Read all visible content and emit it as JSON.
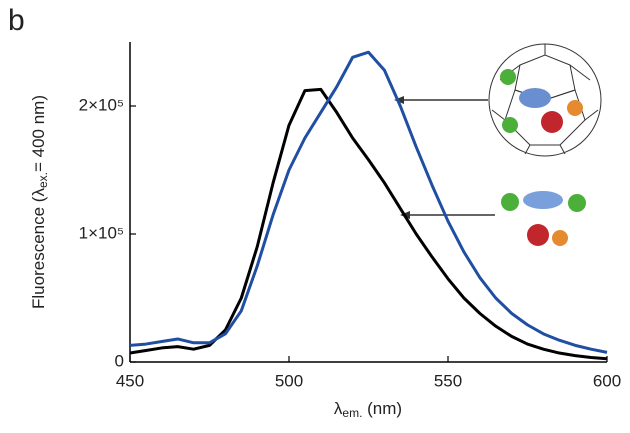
{
  "chart_data": {
    "type": "line",
    "panel_label": "b",
    "xlabel": [
      "λ",
      "em.",
      " (nm)"
    ],
    "ylabel": [
      "Fluorescence (λ",
      "ex.",
      "= 400 nm)"
    ],
    "x": [
      450,
      455,
      460,
      465,
      470,
      475,
      480,
      485,
      490,
      495,
      500,
      505,
      510,
      515,
      520,
      525,
      530,
      535,
      540,
      545,
      550,
      555,
      560,
      565,
      570,
      575,
      580,
      585,
      590,
      595,
      600
    ],
    "series": [
      {
        "name": "free",
        "color": "#000000",
        "values": [
          7000,
          9000,
          11000,
          12000,
          10000,
          13000,
          25000,
          50000,
          90000,
          140000,
          185000,
          212000,
          213000,
          195000,
          175000,
          158000,
          140000,
          120000,
          100000,
          82000,
          65000,
          50000,
          38000,
          28000,
          20000,
          14000,
          10000,
          7000,
          5000,
          3500,
          2500
        ]
      },
      {
        "name": "encapsulated",
        "color": "#1f4ea3",
        "values": [
          13000,
          14000,
          16000,
          18000,
          15000,
          15000,
          22000,
          40000,
          75000,
          115000,
          150000,
          175000,
          195000,
          215000,
          238000,
          242000,
          228000,
          200000,
          168000,
          138000,
          110000,
          86000,
          66000,
          50000,
          38000,
          29000,
          22000,
          17000,
          13000,
          10000,
          7500
        ]
      }
    ],
    "xlim": [
      450,
      600
    ],
    "xticks": [
      450,
      500,
      550,
      600
    ],
    "ylim": [
      0,
      250000
    ],
    "yticks": [
      0,
      {
        "value": 100000,
        "label": "1×10⁵"
      },
      {
        "value": 200000,
        "label": "2×10⁵"
      }
    ]
  }
}
